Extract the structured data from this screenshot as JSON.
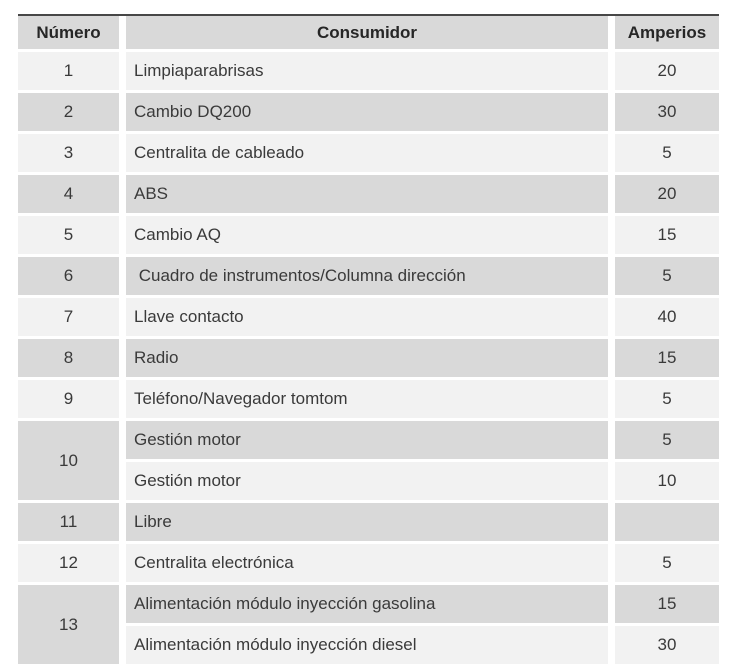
{
  "colors": {
    "top_border": "#474747",
    "row_light": "#f2f2f2",
    "row_gray": "#d9d9d9",
    "header_bg": "#d9d9d9",
    "text": "#3a3a3a",
    "header_text": "#262626"
  },
  "table": {
    "columns": {
      "numero": "Número",
      "consumidor": "Consumidor",
      "amperios": "Amperios"
    },
    "rows": [
      {
        "num": "1",
        "consumer": "Limpiaparabrisas",
        "amps": "20"
      },
      {
        "num": "2",
        "consumer": "Cambio DQ200",
        "amps": "30"
      },
      {
        "num": "3",
        "consumer": "Centralita de cableado",
        "amps": "5"
      },
      {
        "num": "4",
        "consumer": "ABS",
        "amps": "20"
      },
      {
        "num": "5",
        "consumer": "Cambio AQ",
        "amps": "15"
      },
      {
        "num": "6",
        "consumer": " Cuadro de instrumentos/Columna dirección",
        "amps": "5"
      },
      {
        "num": "7",
        "consumer": "Llave contacto",
        "amps": "40"
      },
      {
        "num": "8",
        "consumer": "Radio",
        "amps": "15"
      },
      {
        "num": "9",
        "consumer": "Teléfono/Navegador tomtom",
        "amps": "5"
      },
      {
        "num": "10",
        "consumer": "Gestión motor",
        "amps": "5"
      },
      {
        "consumer": "Gestión motor",
        "amps": "10"
      },
      {
        "num": "11",
        "consumer": "Libre",
        "amps": ""
      },
      {
        "num": "12",
        "consumer": "Centralita electrónica",
        "amps": "5"
      },
      {
        "num": "13",
        "consumer": "Alimentación módulo inyección gasolina",
        "amps": "15"
      },
      {
        "consumer": "Alimentación módulo inyección diesel",
        "amps": "30"
      }
    ]
  }
}
